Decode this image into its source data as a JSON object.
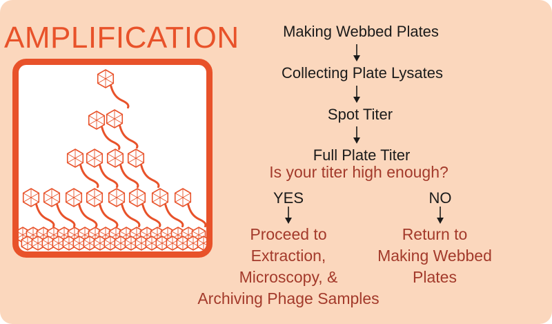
{
  "title": "AMPLIFICATION",
  "illustration": {
    "icon": "bacteriophage-pyramid-icon",
    "color": "#e8522a"
  },
  "colors": {
    "background": "#fbd7bd",
    "accent": "#e8522a",
    "question": "#a33a2b"
  },
  "flow": {
    "step1": "Making Webbed Plates",
    "step2": "Collecting Plate Lysates",
    "step3": "Spot Titer",
    "step4": "Full Plate Titer",
    "question": "Is your titer high enough?",
    "yes_label": "YES",
    "no_label": "NO",
    "yes_result": [
      "Proceed to",
      "Extraction,",
      "Microscopy, &",
      "Archiving Phage Samples"
    ],
    "no_result": [
      "Return to",
      "Making Webbed",
      "Plates"
    ]
  }
}
